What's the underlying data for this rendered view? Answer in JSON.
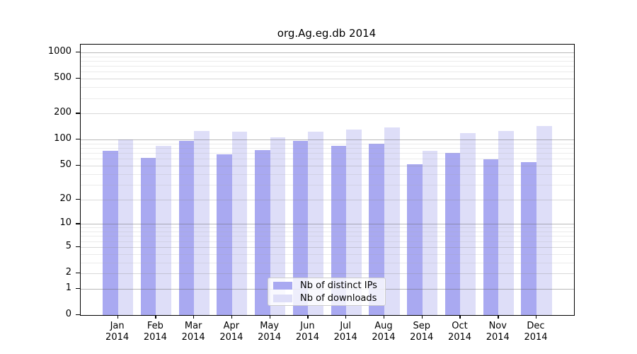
{
  "chart_data": {
    "type": "bar",
    "title": "org.Ag.eg.db 2014",
    "categories": [
      "Jan",
      "Feb",
      "Mar",
      "Apr",
      "May",
      "Jun",
      "Jul",
      "Aug",
      "Sep",
      "Oct",
      "Nov",
      "Dec"
    ],
    "year": "2014",
    "series": [
      {
        "name": "Nb of distinct IPs",
        "color": "#a9a9f1",
        "values": [
          74,
          61,
          97,
          67,
          76,
          96,
          84,
          90,
          52,
          70,
          59,
          55
        ]
      },
      {
        "name": "Nb of downloads",
        "color": "#dedef8",
        "values": [
          100,
          84,
          126,
          123,
          107,
          123,
          130,
          138,
          74,
          118,
          126,
          143
        ]
      }
    ],
    "yscale": "log1p",
    "ylim": [
      0,
      1230
    ],
    "yticks": [
      1000,
      500,
      200,
      100,
      50,
      20,
      10,
      5,
      2,
      1,
      0
    ],
    "grid": {
      "major": [
        1,
        10,
        100,
        1000
      ],
      "mid": [
        2,
        5,
        20,
        50,
        200,
        500
      ],
      "minor": [
        3,
        4,
        6,
        7,
        8,
        9,
        30,
        40,
        60,
        70,
        80,
        90,
        300,
        400,
        600,
        700,
        800,
        900
      ]
    },
    "legend_position": "inside-bottom-center",
    "grid_on": true
  },
  "legend": {
    "items": [
      {
        "label": "Nb of distinct IPs"
      },
      {
        "label": "Nb of downloads"
      }
    ]
  }
}
